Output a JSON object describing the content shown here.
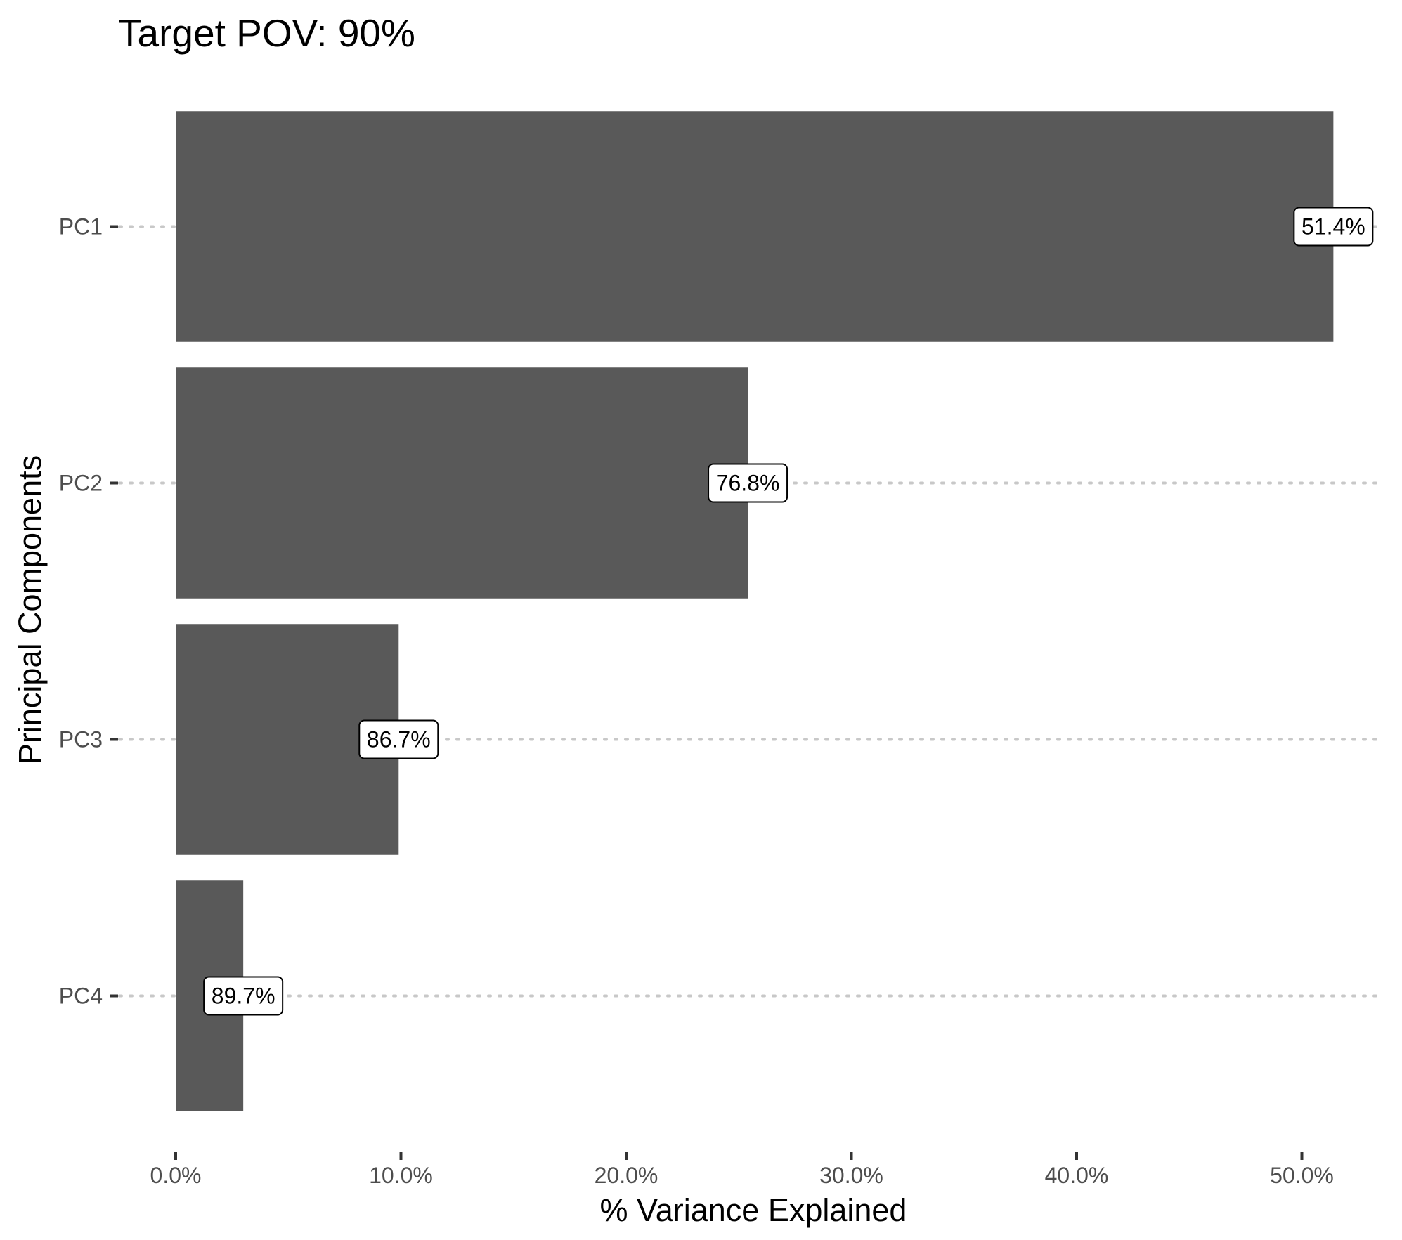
{
  "chart_data": {
    "type": "bar",
    "orientation": "horizontal",
    "title": "Target POV: 90%",
    "xlabel": "% Variance Explained",
    "ylabel": "Principal Components",
    "categories": [
      "PC1",
      "PC2",
      "PC3",
      "PC4"
    ],
    "values": [
      51.4,
      25.4,
      9.9,
      3.0
    ],
    "data_labels": [
      "51.4%",
      "76.8%",
      "86.7%",
      "89.7%"
    ],
    "xlim": [
      0,
      53
    ],
    "x_ticks": [
      0,
      10,
      20,
      30,
      40,
      50
    ],
    "x_tick_labels": [
      "0.0%",
      "10.0%",
      "20.0%",
      "30.0%",
      "40.0%",
      "50.0%"
    ],
    "grid": "horizontal dotted",
    "legend": "none",
    "bar_color": "#595959",
    "grid_color": "#c8c8c8"
  }
}
